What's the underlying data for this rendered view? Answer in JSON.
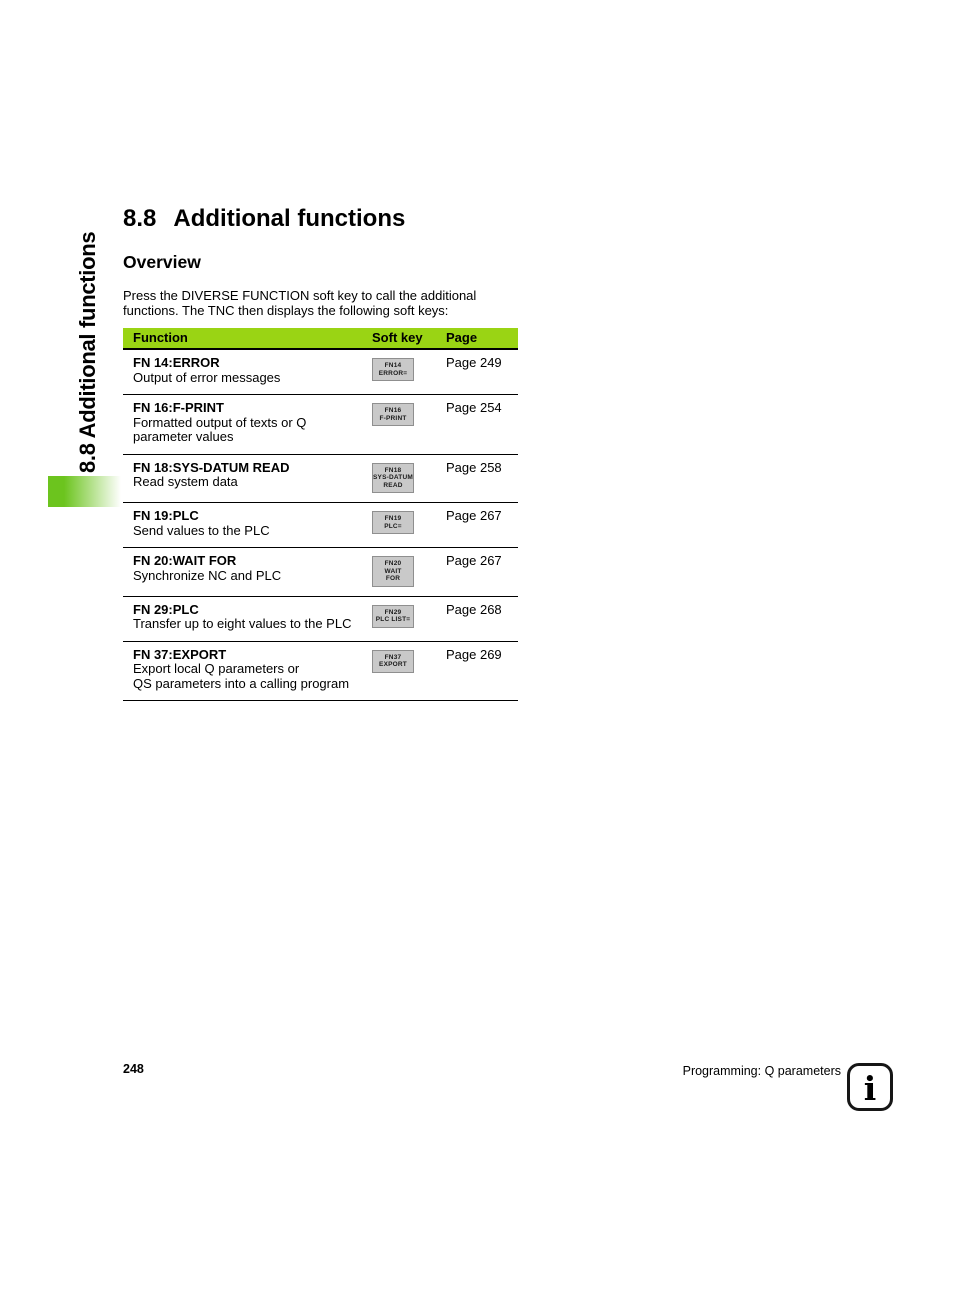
{
  "sidebar": {
    "title": "8.8 Additional functions"
  },
  "content": {
    "section_number": "8.8",
    "section_title": "Additional functions",
    "subheading": "Overview",
    "intro": "Press the DIVERSE FUNCTION soft key to call the additional\nfunctions. The TNC then displays the following soft keys:"
  },
  "table": {
    "columns": [
      "Function",
      "Soft key",
      "Page"
    ],
    "rows": [
      {
        "name": "FN 14:ERROR",
        "description": "Output of error messages",
        "softkey": [
          "FN14",
          "ERROR="
        ],
        "page": "Page 249"
      },
      {
        "name": "FN 16:F-PRINT",
        "description": "Formatted output of texts or Q\nparameter values",
        "softkey": [
          "FN16",
          "F-PRINT"
        ],
        "page": "Page 254"
      },
      {
        "name": "FN 18:SYS-DATUM READ",
        "description": "Read system data",
        "softkey": [
          "FN18",
          "SYS-DATUM",
          "READ"
        ],
        "page": "Page 258"
      },
      {
        "name": "FN 19:PLC",
        "description": "Send values to the PLC",
        "softkey": [
          "FN19",
          "PLC="
        ],
        "page": "Page 267"
      },
      {
        "name": "FN 20:WAIT FOR",
        "description": "Synchronize NC and PLC",
        "softkey": [
          "FN20",
          "WAIT",
          "FOR"
        ],
        "page": "Page 267"
      },
      {
        "name": "FN 29:PLC",
        "description": "Transfer up to eight values to the PLC",
        "softkey": [
          "FN29",
          "PLC LIST="
        ],
        "page": "Page 268"
      },
      {
        "name": "FN 37:EXPORT",
        "description": "Export local Q parameters or\nQS parameters into a calling program",
        "softkey": [
          "FN37",
          "EXPORT"
        ],
        "page": "Page 269"
      }
    ]
  },
  "footer": {
    "page_number": "248",
    "text": "Programming: Q parameters",
    "info_icon_glyph": "i"
  },
  "colors": {
    "header_green": "#9ad414",
    "accent_green": "#6cc41e",
    "softkey_bg": "#c9c9c9"
  }
}
